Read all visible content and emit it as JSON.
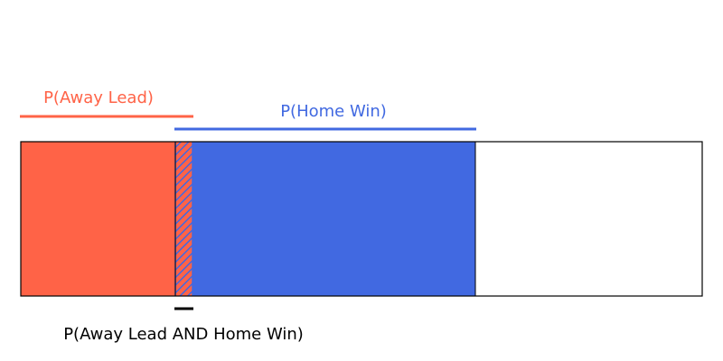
{
  "diagram": {
    "away_label": "P(Away Lead)",
    "home_label": "P(Home Win)",
    "overlap_label": "P(Away Lead AND Home Win)"
  },
  "colors": {
    "away": "#FF6347",
    "home": "#4169E1",
    "overlap_line": "#000000",
    "outline": "#000000",
    "background": "#FFFFFF"
  }
}
